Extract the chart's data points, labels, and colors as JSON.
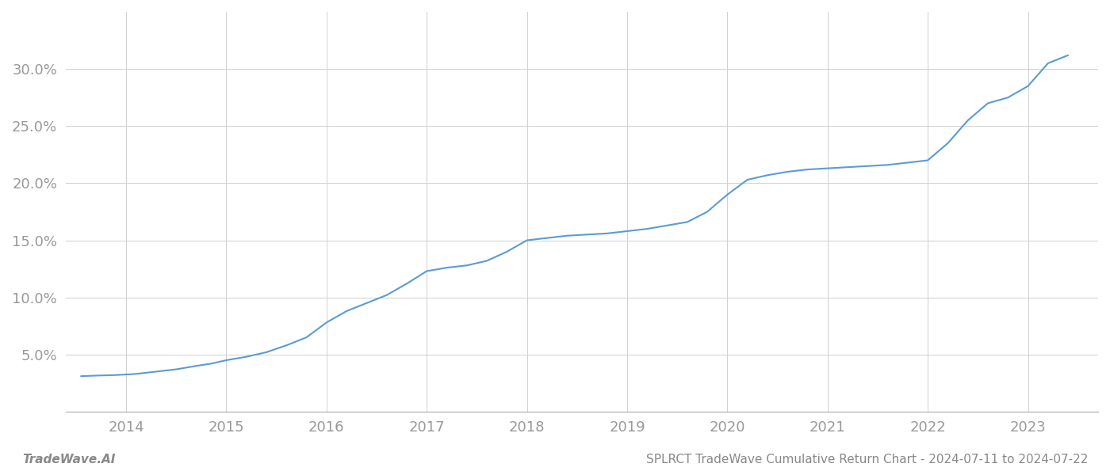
{
  "title": "SPLRCT TradeWave Cumulative Return Chart - 2024-07-11 to 2024-07-22",
  "footer_left": "TradeWave.AI",
  "line_color": "#5b9bd5",
  "background_color": "#ffffff",
  "x_values": [
    2013.55,
    2013.7,
    2013.9,
    2014.1,
    2014.3,
    2014.5,
    2014.7,
    2014.85,
    2015.0,
    2015.2,
    2015.4,
    2015.6,
    2015.8,
    2016.0,
    2016.2,
    2016.4,
    2016.6,
    2016.8,
    2017.0,
    2017.2,
    2017.4,
    2017.6,
    2017.8,
    2018.0,
    2018.2,
    2018.4,
    2018.6,
    2018.8,
    2019.0,
    2019.2,
    2019.4,
    2019.6,
    2019.8,
    2020.0,
    2020.2,
    2020.4,
    2020.6,
    2020.8,
    2021.0,
    2021.2,
    2021.4,
    2021.6,
    2021.8,
    2022.0,
    2022.2,
    2022.4,
    2022.6,
    2022.8,
    2023.0,
    2023.2,
    2023.4
  ],
  "y_values": [
    3.1,
    3.15,
    3.2,
    3.3,
    3.5,
    3.7,
    4.0,
    4.2,
    4.5,
    4.8,
    5.2,
    5.8,
    6.5,
    7.8,
    8.8,
    9.5,
    10.2,
    11.2,
    12.3,
    12.6,
    12.8,
    13.2,
    14.0,
    15.0,
    15.2,
    15.4,
    15.5,
    15.6,
    15.8,
    16.0,
    16.3,
    16.6,
    17.5,
    19.0,
    20.3,
    20.7,
    21.0,
    21.2,
    21.3,
    21.4,
    21.5,
    21.6,
    21.8,
    22.0,
    23.5,
    25.5,
    27.0,
    27.5,
    28.5,
    30.5,
    31.2
  ],
  "xlim": [
    2013.4,
    2023.7
  ],
  "ylim": [
    0,
    35
  ],
  "yticks": [
    5.0,
    10.0,
    15.0,
    20.0,
    25.0,
    30.0
  ],
  "ytick_labels": [
    "5.0%",
    "10.0%",
    "15.0%",
    "20.0%",
    "25.0%",
    "30.0%"
  ],
  "xticks": [
    2014,
    2015,
    2016,
    2017,
    2018,
    2019,
    2020,
    2021,
    2022,
    2023
  ],
  "grid_color": "#d0d0d0",
  "line_width": 1.5,
  "tick_fontsize": 13,
  "footer_fontsize": 11
}
